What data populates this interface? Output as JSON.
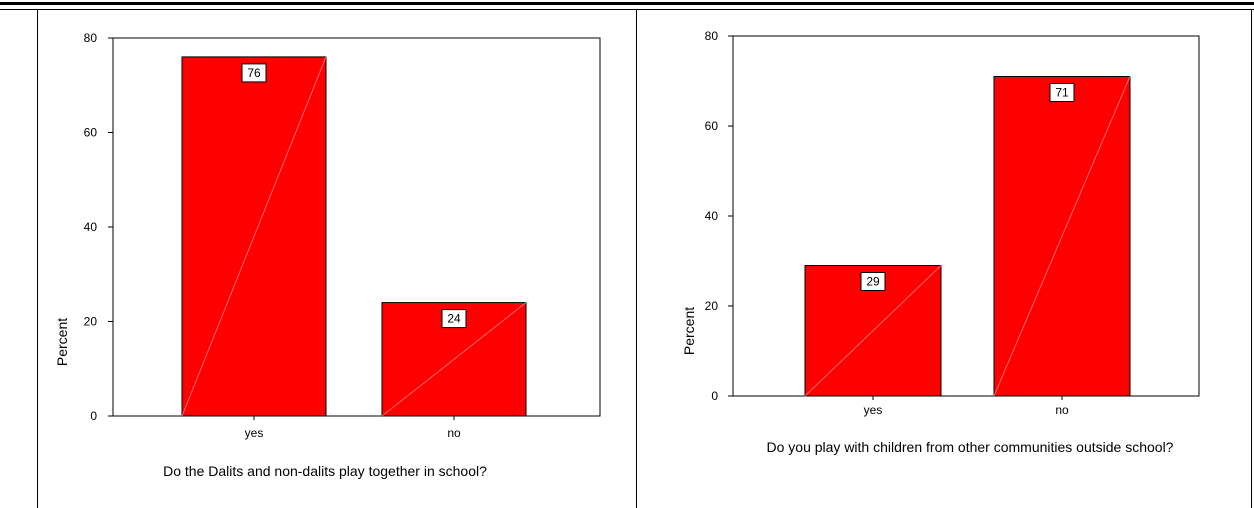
{
  "chart_data": [
    {
      "type": "bar",
      "categories": [
        "yes",
        "no"
      ],
      "values": [
        76,
        24
      ],
      "data_labels": [
        "76",
        "24"
      ],
      "ylabel": "Percent",
      "ylim": [
        0,
        80
      ],
      "yticks": [
        "0",
        "20",
        "40",
        "60",
        "80"
      ],
      "caption": "Do the Dalits and non-dalits play together in school?",
      "bar_color": "#ff0000",
      "grid": false
    },
    {
      "type": "bar",
      "categories": [
        "yes",
        "no"
      ],
      "values": [
        29,
        71
      ],
      "data_labels": [
        "29",
        "71"
      ],
      "ylabel": "Percent",
      "ylim": [
        0,
        80
      ],
      "yticks": [
        "0",
        "20",
        "40",
        "60",
        "80"
      ],
      "caption": "Do you play with children from other communities outside school?",
      "bar_color": "#ff0000",
      "grid": false
    }
  ]
}
